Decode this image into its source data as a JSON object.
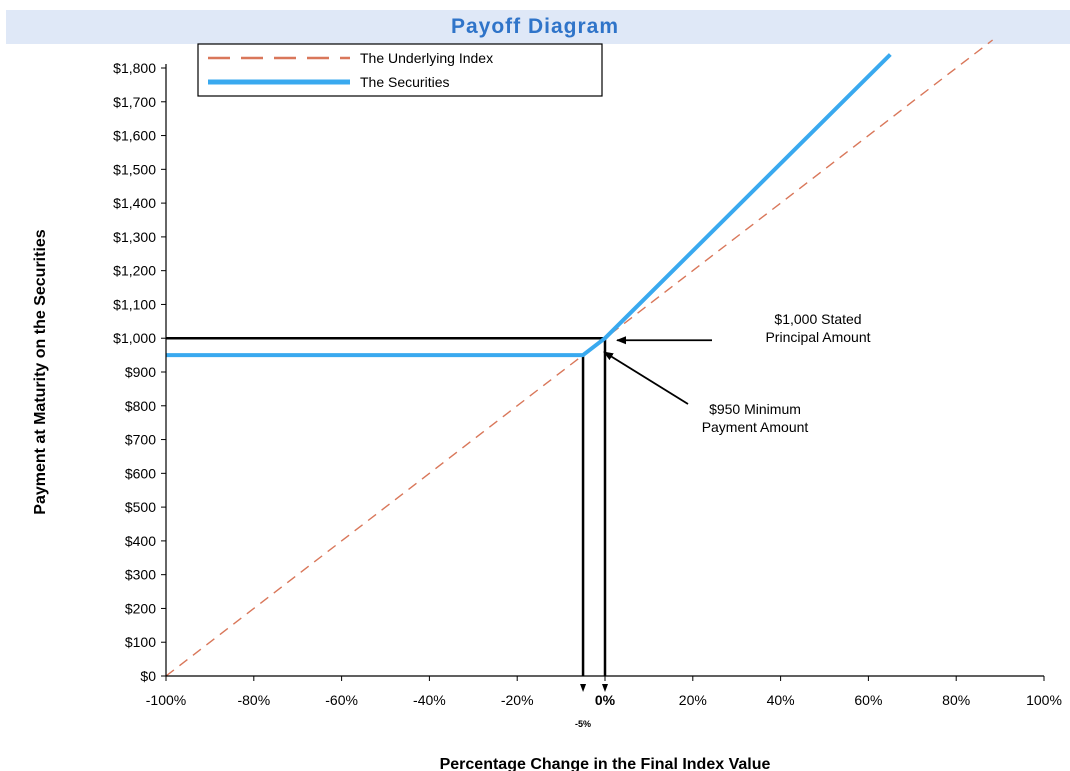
{
  "title": "Payoff Diagram",
  "chart_data": {
    "type": "line",
    "xlabel": "Percentage Change in the Final Index Value",
    "ylabel": "Payment at Maturity on the Securities",
    "xlim": [
      -100,
      100
    ],
    "ylim": [
      0,
      1800
    ],
    "x_ticks": [
      "-100%",
      "-80%",
      "-60%",
      "-40%",
      "-20%",
      "0%",
      "20%",
      "40%",
      "60%",
      "80%",
      "100%"
    ],
    "y_ticks": [
      "$0",
      "$100",
      "$200",
      "$300",
      "$400",
      "$500",
      "$600",
      "$700",
      "$800",
      "$900",
      "$1,000",
      "$1,100",
      "$1,200",
      "$1,300",
      "$1,400",
      "$1,500",
      "$1,600",
      "$1,700",
      "$1,800"
    ],
    "legend_position": "top-left",
    "series": [
      {
        "name": "The Underlying Index",
        "style": "dashed",
        "color": "#d9775a",
        "points": [
          [
            -100,
            0
          ],
          [
            100,
            2000
          ]
        ]
      },
      {
        "name": "The Securities",
        "style": "solid",
        "color": "#39a9ef",
        "points": [
          [
            -100,
            950
          ],
          [
            -5,
            950
          ],
          [
            0,
            1000
          ],
          [
            65,
            1840
          ]
        ]
      }
    ],
    "reference_lines": {
      "color": "#000000",
      "segments": [
        [
          [
            -100,
            1000
          ],
          [
            0,
            1000
          ]
        ],
        [
          [
            -5,
            0
          ],
          [
            -5,
            950
          ]
        ],
        [
          [
            0,
            0
          ],
          [
            0,
            1000
          ]
        ],
        [
          [
            -5,
            950
          ],
          [
            0,
            1000
          ]
        ]
      ]
    },
    "extra_tick_label": "-5%",
    "annotations": [
      {
        "id": "stated",
        "lines": [
          "$1,000 Stated",
          "Principal Amount"
        ],
        "target": [
          0,
          1000
        ]
      },
      {
        "id": "minimum",
        "lines": [
          "$950 Minimum",
          "Payment Amount"
        ],
        "target": [
          -0.5,
          960
        ]
      }
    ]
  }
}
